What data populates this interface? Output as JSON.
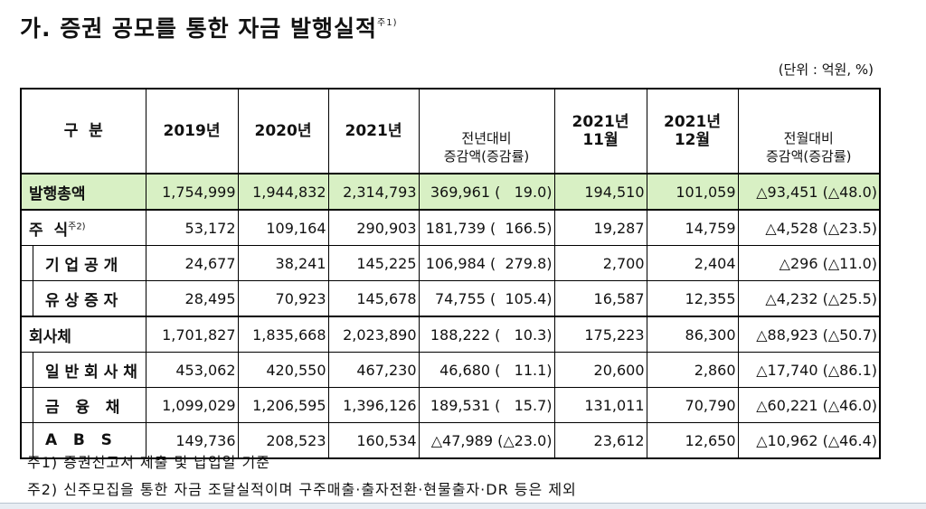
{
  "header": {
    "title": "가. 증권 공모를 통한 자금 발행실적",
    "title_note": "주1)",
    "unit": "(단위 : 억원, %)"
  },
  "table": {
    "columns": [
      [
        "구  분"
      ],
      [
        "2019년"
      ],
      [
        "2020년"
      ],
      [
        "2021년"
      ],
      [
        "전년대비",
        "증감액(증감률)"
      ],
      [
        "2021년",
        "11월"
      ],
      [
        "2021년",
        "12월"
      ],
      [
        "전월대비",
        "증감액(증감률)"
      ]
    ],
    "rows": [
      [
        "발행총액",
        "1,754,999",
        "1,944,832",
        "2,314,793",
        "369,961 (   19.0)",
        "194,510",
        "101,059",
        "△93,451 (△48.0)"
      ],
      [
        "주  식",
        "53,172",
        "109,164",
        "290,903",
        "181,739 (  166.5)",
        "19,287",
        "14,759",
        "△4,528 (△23.5)"
      ],
      [
        "기 업 공 개",
        "24,677",
        "38,241",
        "145,225",
        "106,984 (  279.8)",
        "2,700",
        "2,404",
        "△296 (△11.0)"
      ],
      [
        "유 상 증 자",
        "28,495",
        "70,923",
        "145,678",
        "74,755 (  105.4)",
        "16,587",
        "12,355",
        "△4,232 (△25.5)"
      ],
      [
        "회사체",
        "1,701,827",
        "1,835,668",
        "2,023,890",
        "188,222 (   10.3)",
        "175,223",
        "86,300",
        "△88,923 (△50.7)"
      ],
      [
        "일 반 회 사 채",
        "453,062",
        "420,550",
        "467,230",
        "46,680 (   11.1)",
        "20,600",
        "2,860",
        "△17,740 (△86.1)"
      ],
      [
        "금   융   채",
        "1,099,029",
        "1,206,595",
        "1,396,126",
        "189,531 (   15.7)",
        "131,011",
        "70,790",
        "△60,221 (△46.0)"
      ],
      [
        "A   B   S",
        "149,736",
        "208,523",
        "160,534",
        "△47,989 (△23.0)",
        "23,612",
        "12,650",
        "△10,962 (△46.4)"
      ]
    ],
    "row_notes": {
      "1": "주2)"
    }
  },
  "footnotes": [
    "주1) 증권신고서 제출 및 납입일 기준",
    "주2) 신주모집을 통한 자금 조달실적이며 구주매출·출자전환·현물출자·DR 등은 제외"
  ]
}
